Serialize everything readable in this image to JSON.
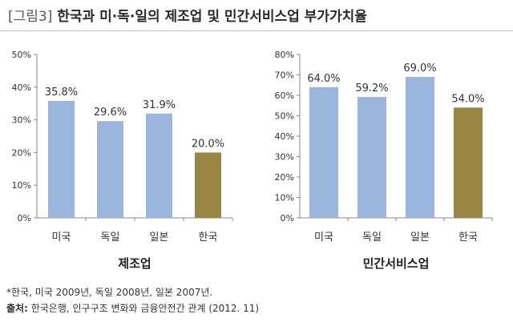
{
  "title": {
    "prefix": "[그림3]",
    "text": "한국과 미·독·일의 제조업 및 민간서비스업 부가가치율"
  },
  "colors": {
    "others": "#9ab6de",
    "korea": "#9a8543",
    "axis": "#888888"
  },
  "chart_data": [
    {
      "type": "bar",
      "title": "제조업",
      "categories": [
        "미국",
        "독일",
        "일본",
        "한국"
      ],
      "values": [
        35.8,
        29.6,
        31.9,
        20.0
      ],
      "value_labels": [
        "35.8%",
        "29.6%",
        "31.9%",
        "20.0%"
      ],
      "ylim": [
        0,
        50
      ],
      "yticks": [
        "0%",
        "10%",
        "20%",
        "30%",
        "40%",
        "50%"
      ],
      "grid": false,
      "legend": "none"
    },
    {
      "type": "bar",
      "title": "민간서비스업",
      "categories": [
        "미국",
        "독일",
        "일본",
        "한국"
      ],
      "values": [
        64.0,
        59.2,
        69.0,
        54.0
      ],
      "value_labels": [
        "64.0%",
        "59.2%",
        "69.0%",
        "54.0%"
      ],
      "ylim": [
        0,
        80
      ],
      "yticks": [
        "0%",
        "10%",
        "20%",
        "30%",
        "40%",
        "50%",
        "60%",
        "70%",
        "80%"
      ],
      "grid": false,
      "legend": "none"
    }
  ],
  "notes": {
    "footnote": "*한국, 미국 2009년, 독일 2008년, 일본 2007년.",
    "source_label": "출처:",
    "source_text": " 한국은행, 인구구조 변화와 금융안전간 관계 (2012. 11)"
  }
}
